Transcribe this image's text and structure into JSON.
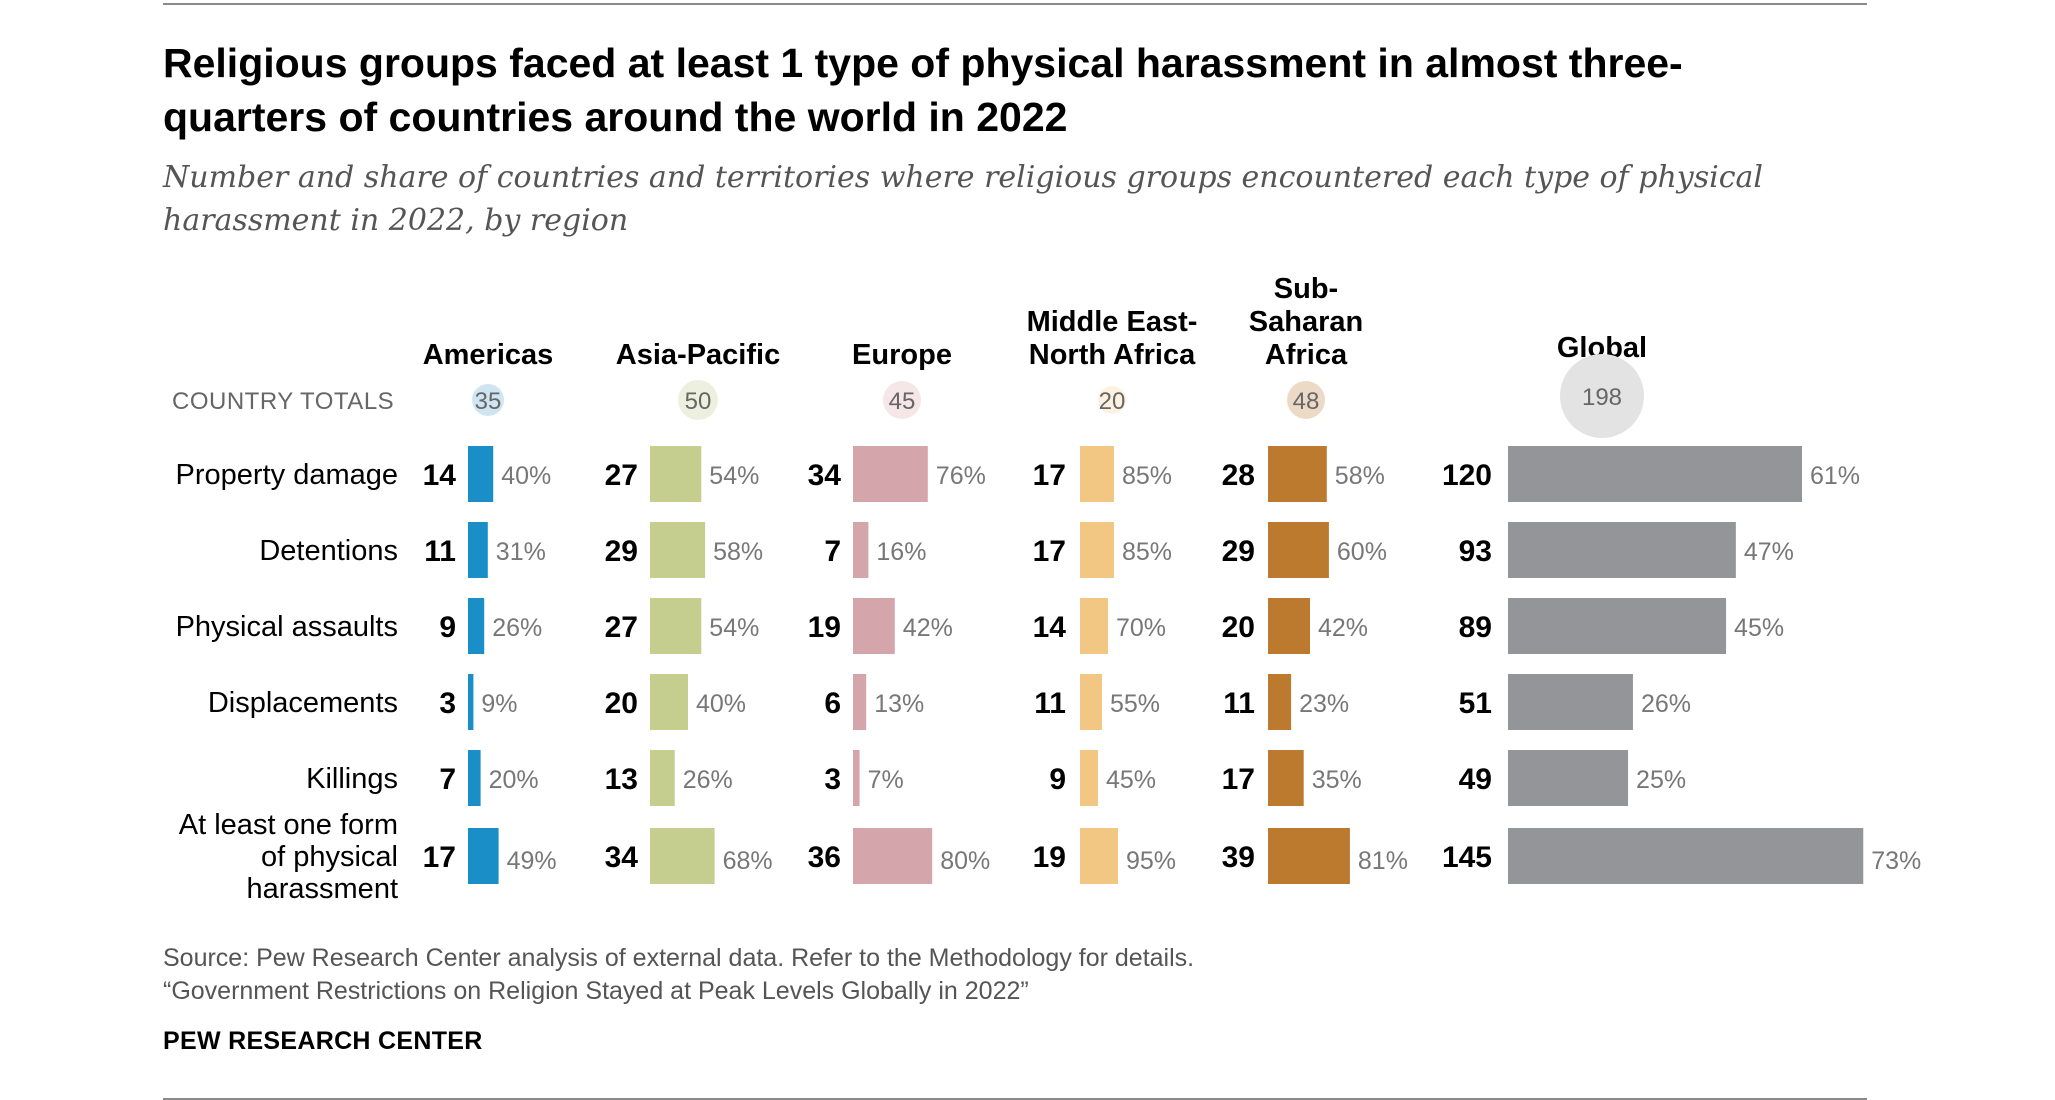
{
  "title": "Religious groups faced at least 1 type of physical harassment in almost three-quarters of countries around the world in 2022",
  "subtitle": "Number and share of countries and territories where religious groups encountered each type of physical harassment in 2022, by region",
  "source_line1": "Source: Pew Research Center analysis of external data. Refer to the Methodology for details.",
  "source_line2": "“Government Restrictions on Religion Stayed at Peak Levels Globally in 2022”",
  "brand": "PEW RESEARCH CENTER",
  "chart_data": {
    "type": "bar",
    "orientation": "horizontal",
    "totals_label": "COUNTRY TOTALS",
    "categories": [
      "Property damage",
      "Detentions",
      "Physical assaults",
      "Displacements",
      "Killings",
      "At least one form of physical harassment"
    ],
    "series": [
      {
        "name": "Americas",
        "total": 35,
        "color": "#1a8fc7",
        "total_color": "#cfe6f2",
        "counts": [
          14,
          11,
          9,
          3,
          7,
          17
        ],
        "percents": [
          40,
          31,
          26,
          9,
          20,
          49
        ]
      },
      {
        "name": "Asia-Pacific",
        "total": 50,
        "color": "#c5cd8f",
        "total_color": "#eef0df",
        "counts": [
          27,
          29,
          27,
          20,
          13,
          34
        ],
        "percents": [
          54,
          58,
          54,
          40,
          26,
          68
        ]
      },
      {
        "name": "Europe",
        "total": 45,
        "color": "#d4a6ac",
        "total_color": "#f5e6e8",
        "counts": [
          34,
          7,
          19,
          6,
          3,
          36
        ],
        "percents": [
          76,
          16,
          42,
          13,
          7,
          80
        ]
      },
      {
        "name": "Middle East-North Africa",
        "total": 20,
        "color": "#f2c683",
        "total_color": "#fdf2e2",
        "counts": [
          17,
          17,
          14,
          11,
          9,
          19
        ],
        "percents": [
          85,
          85,
          70,
          55,
          45,
          95
        ]
      },
      {
        "name": "Sub-Saharan Africa",
        "total": 48,
        "color": "#bc7a2e",
        "total_color": "#ecdac6",
        "counts": [
          28,
          29,
          20,
          11,
          17,
          39
        ],
        "percents": [
          58,
          60,
          42,
          23,
          35,
          81
        ]
      },
      {
        "name": "Global",
        "total": 198,
        "color": "#939598",
        "total_color": "#e3e3e3",
        "counts": [
          120,
          93,
          89,
          51,
          49,
          145
        ],
        "percents": [
          61,
          47,
          45,
          26,
          25,
          73
        ]
      }
    ],
    "bar_scale_note": "bar length proportional to country count"
  }
}
